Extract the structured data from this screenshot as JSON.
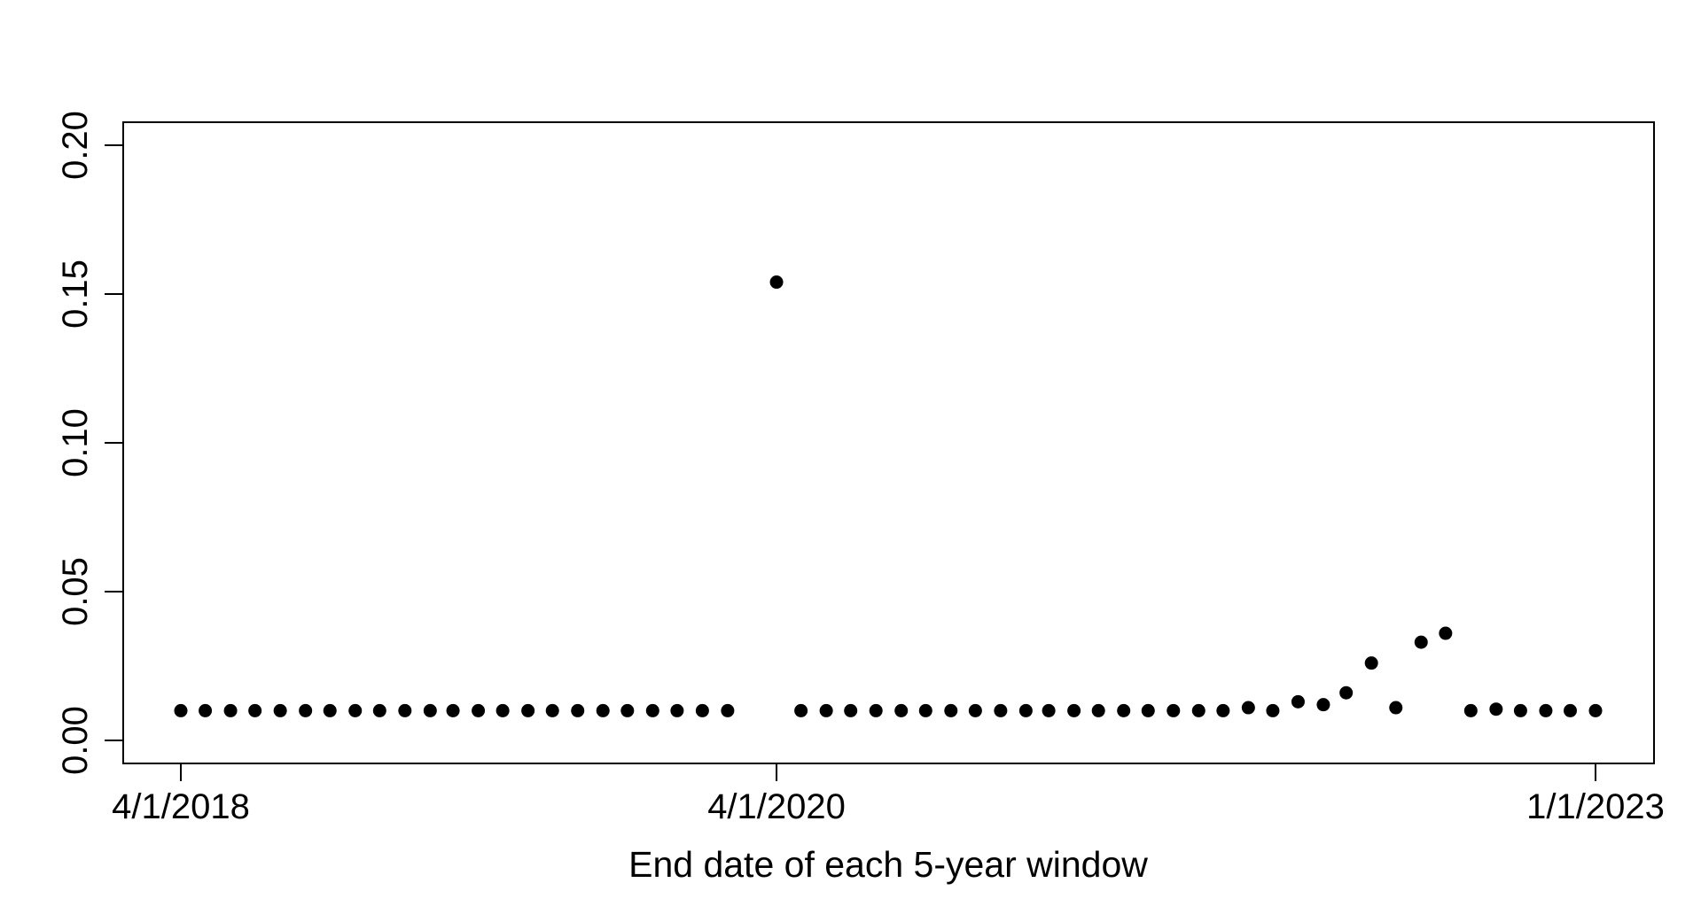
{
  "chart_data": {
    "type": "scatter",
    "xlabel": "End date of each 5-year window",
    "ylabel": "",
    "x_type": "date",
    "xlim": [
      "2018-04-01",
      "2023-01-01"
    ],
    "ylim": [
      0.0,
      0.2
    ],
    "y_ticks": [
      "0.00",
      "0.05",
      "0.10",
      "0.15",
      "0.20"
    ],
    "x_ticks": [
      {
        "date": "2018-04-01",
        "label": "4/1/2018"
      },
      {
        "date": "2020-04-01",
        "label": "4/1/2020"
      },
      {
        "date": "2023-01-01",
        "label": "1/1/2023"
      }
    ],
    "grid": false,
    "legend": "none",
    "point_color": "#000000",
    "series": [
      {
        "x": [
          "2018-04-01",
          "2018-05-01",
          "2018-06-01",
          "2018-07-01",
          "2018-08-01",
          "2018-09-01",
          "2018-10-01",
          "2018-11-01",
          "2018-12-01",
          "2019-01-01",
          "2019-02-01",
          "2019-03-01",
          "2019-04-01",
          "2019-05-01",
          "2019-06-01",
          "2019-07-01",
          "2019-08-01",
          "2019-09-01",
          "2019-10-01",
          "2019-11-01",
          "2019-12-01",
          "2020-01-01",
          "2020-02-01",
          "2020-03-01",
          "2020-04-01",
          "2020-05-01",
          "2020-06-01",
          "2020-07-01",
          "2020-08-01",
          "2020-09-01",
          "2020-10-01",
          "2020-11-01",
          "2020-12-01",
          "2021-01-01",
          "2021-02-01",
          "2021-03-01",
          "2021-04-01",
          "2021-05-01",
          "2021-06-01",
          "2021-07-01",
          "2021-08-01",
          "2021-09-01",
          "2021-10-01",
          "2021-11-01",
          "2021-12-01",
          "2022-01-01",
          "2022-02-01",
          "2022-03-01",
          "2022-04-01",
          "2022-05-01",
          "2022-06-01",
          "2022-07-01",
          "2022-08-01",
          "2022-09-01",
          "2022-10-01",
          "2022-11-01",
          "2022-12-01",
          "2023-01-01"
        ],
        "y": [
          0.01,
          0.01,
          0.01,
          0.01,
          0.01,
          0.01,
          0.01,
          0.01,
          0.01,
          0.01,
          0.01,
          0.01,
          0.01,
          0.01,
          0.01,
          0.01,
          0.01,
          0.01,
          0.01,
          0.01,
          0.01,
          0.01,
          0.01,
          null,
          0.154,
          0.01,
          0.01,
          0.01,
          0.01,
          0.01,
          0.01,
          0.01,
          0.01,
          0.01,
          0.01,
          0.01,
          0.01,
          0.01,
          0.01,
          0.01,
          0.01,
          0.01,
          0.01,
          0.011,
          0.01,
          0.013,
          0.012,
          0.016,
          0.026,
          0.011,
          0.033,
          0.036,
          0.01,
          0.0105,
          0.01,
          0.01,
          0.01,
          0.01
        ]
      }
    ]
  }
}
